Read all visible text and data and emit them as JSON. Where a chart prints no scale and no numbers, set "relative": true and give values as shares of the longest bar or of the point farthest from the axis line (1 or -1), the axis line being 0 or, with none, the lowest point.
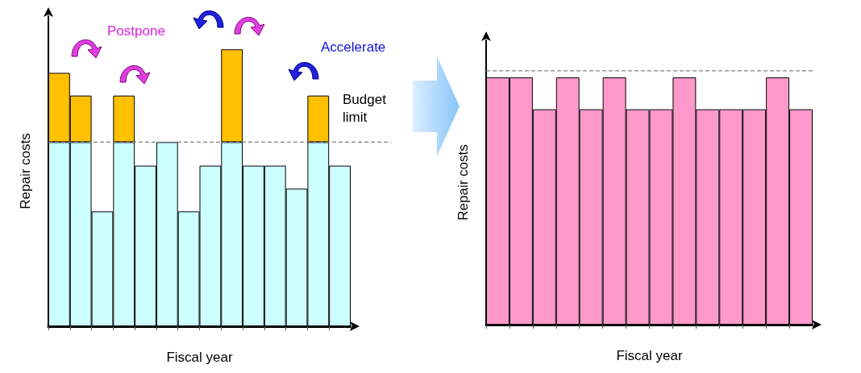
{
  "chart_data": [
    {
      "type": "bar",
      "stacked": true,
      "relative": true,
      "xlabel": "Fiscal year",
      "ylabel": "Repair costs",
      "categories": [
        null,
        null,
        null,
        null,
        null,
        null,
        null,
        null,
        null,
        null,
        null,
        null,
        null,
        null
      ],
      "series": [
        {
          "color": "#ccffff",
          "values": [
            0.665,
            0.665,
            0.415,
            0.665,
            0.58,
            0.665,
            0.415,
            0.58,
            0.665,
            0.58,
            0.58,
            0.497,
            0.665,
            0.58
          ]
        },
        {
          "color": "#ffc000",
          "values": [
            0.25,
            0.168,
            null,
            0.168,
            null,
            null,
            null,
            null,
            0.335,
            null,
            null,
            null,
            0.168,
            null
          ]
        }
      ],
      "ref_lines": [
        {
          "axis": "y",
          "value": 0.665,
          "label": "Budget limit",
          "color": "#808080",
          "line_style": "dashed"
        }
      ],
      "annotations": [
        "Postpone",
        "Accelerate"
      ]
    },
    {
      "type": "bar",
      "relative": true,
      "xlabel": "Fiscal year",
      "ylabel": "Repair costs",
      "categories": [
        null,
        null,
        null,
        null,
        null,
        null,
        null,
        null,
        null,
        null,
        null,
        null,
        null,
        null
      ],
      "series": [
        {
          "color": "#ff99cc",
          "values": [
            1,
            1,
            0.871,
            1,
            0.871,
            1,
            0.871,
            0.871,
            1,
            0.871,
            0.871,
            0.871,
            1,
            0.871
          ]
        }
      ],
      "ref_lines": [
        {
          "axis": "y",
          "value": 1.027,
          "color": "#808080",
          "line_style": "dashed"
        }
      ]
    }
  ]
}
